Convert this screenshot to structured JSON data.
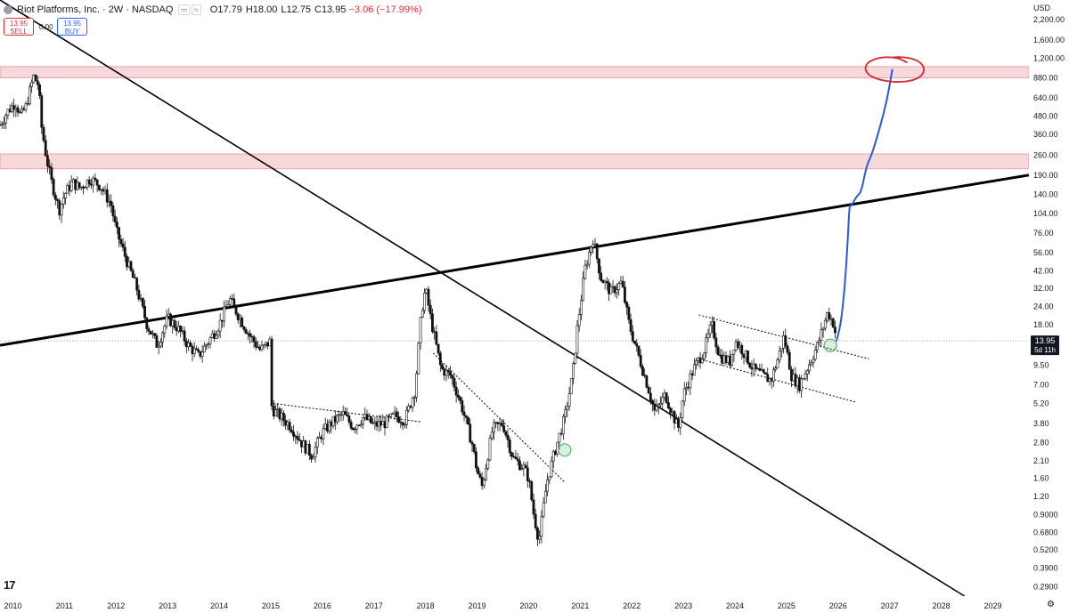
{
  "header": {
    "title": "Riot Platforms, Inc. · 2W · NASDAQ",
    "ind_a": "═",
    "ind_b": "≈",
    "open": "O17.79",
    "high": "H18.00",
    "low": "L12.75",
    "close": "C13.95",
    "change": "−3.06 (−17.99%)",
    "sell_price": "13.95",
    "sell_label": "SELL",
    "spread": "0.00",
    "buy_price": "13.95",
    "buy_label": "BUY"
  },
  "axis": {
    "currency": "USD",
    "countdown": "5d 11h",
    "settings_icon": "gear-icon",
    "logo_text": "17"
  },
  "colors": {
    "candle": "#111111",
    "zone_fill": "#f7d9db",
    "zone_line": "#e9a3a8",
    "projection": "#2b59d9",
    "target_circle": "#d9282f",
    "reversal_marker": "#3aa55a",
    "price_label_bg": "#131722"
  },
  "chart_data": {
    "type": "candlestick",
    "title": "Riot Platforms, Inc. · 2W · NASDAQ",
    "y_scale": "log",
    "ylim": [
      0.25,
      3000
    ],
    "xlim": [
      2009.75,
      2029.7
    ],
    "x_ticks": [
      "2010",
      "2011",
      "2012",
      "2013",
      "2014",
      "2015",
      "2016",
      "2017",
      "2018",
      "2019",
      "2020",
      "2021",
      "2022",
      "2023",
      "2024",
      "2025",
      "2026",
      "2027",
      "2028",
      "2029"
    ],
    "y_ticks": [
      "2,200.00",
      "1,600.00",
      "1,200.00",
      "880.00",
      "640.00",
      "480.00",
      "360.00",
      "260.00",
      "190.00",
      "140.00",
      "104.00",
      "76.00",
      "56.00",
      "42.00",
      "32.00",
      "24.00",
      "18.00",
      "13.95",
      "9.50",
      "7.00",
      "5.20",
      "3.80",
      "2.80",
      "2.10",
      "1.60",
      "1.20",
      "0.9000",
      "0.6800",
      "0.5200",
      "0.3900",
      "0.2900"
    ],
    "last_price": "13.95",
    "price_path": [
      [
        2009.75,
        420
      ],
      [
        2009.9,
        520
      ],
      [
        2010.05,
        600
      ],
      [
        2010.15,
        480
      ],
      [
        2010.25,
        560
      ],
      [
        2010.4,
        900
      ],
      [
        2010.5,
        780
      ],
      [
        2010.55,
        420
      ],
      [
        2010.65,
        250
      ],
      [
        2010.75,
        170
      ],
      [
        2010.9,
        110
      ],
      [
        2011.0,
        140
      ],
      [
        2011.15,
        170
      ],
      [
        2011.3,
        155
      ],
      [
        2011.5,
        180
      ],
      [
        2011.7,
        160
      ],
      [
        2011.9,
        120
      ],
      [
        2012.0,
        80
      ],
      [
        2012.2,
        50
      ],
      [
        2012.4,
        32
      ],
      [
        2012.6,
        18
      ],
      [
        2012.8,
        13
      ],
      [
        2013.0,
        20
      ],
      [
        2013.2,
        17
      ],
      [
        2013.4,
        13
      ],
      [
        2013.6,
        11
      ],
      [
        2013.8,
        14
      ],
      [
        2014.0,
        18
      ],
      [
        2014.2,
        27
      ],
      [
        2014.4,
        20
      ],
      [
        2014.6,
        15
      ],
      [
        2014.8,
        12
      ],
      [
        2015.0,
        14
      ],
      [
        2015.02,
        4.8
      ],
      [
        2015.2,
        4.2
      ],
      [
        2015.4,
        3.6
      ],
      [
        2015.6,
        2.8
      ],
      [
        2015.8,
        2.3
      ],
      [
        2016.0,
        3.3
      ],
      [
        2016.2,
        3.9
      ],
      [
        2016.4,
        4.4
      ],
      [
        2016.6,
        3.6
      ],
      [
        2016.8,
        4.2
      ],
      [
        2017.0,
        3.7
      ],
      [
        2017.2,
        3.8
      ],
      [
        2017.4,
        4.3
      ],
      [
        2017.6,
        4.0
      ],
      [
        2017.8,
        6.5
      ],
      [
        2017.92,
        22
      ],
      [
        2018.0,
        32
      ],
      [
        2018.1,
        20
      ],
      [
        2018.3,
        9
      ],
      [
        2018.5,
        8
      ],
      [
        2018.7,
        5
      ],
      [
        2018.9,
        2.8
      ],
      [
        2019.0,
        1.8
      ],
      [
        2019.1,
        1.4
      ],
      [
        2019.3,
        3.5
      ],
      [
        2019.5,
        3.8
      ],
      [
        2019.7,
        2.2
      ],
      [
        2019.9,
        1.9
      ],
      [
        2020.0,
        1.6
      ],
      [
        2020.1,
        0.9
      ],
      [
        2020.2,
        0.6
      ],
      [
        2020.35,
        1.5
      ],
      [
        2020.5,
        2.4
      ],
      [
        2020.7,
        4.2
      ],
      [
        2020.85,
        8
      ],
      [
        2020.95,
        18
      ],
      [
        2021.1,
        45
      ],
      [
        2021.25,
        70
      ],
      [
        2021.4,
        38
      ],
      [
        2021.6,
        30
      ],
      [
        2021.8,
        35
      ],
      [
        2021.95,
        18
      ],
      [
        2022.1,
        12
      ],
      [
        2022.3,
        7
      ],
      [
        2022.45,
        4.5
      ],
      [
        2022.65,
        6
      ],
      [
        2022.9,
        3.5
      ],
      [
        2023.0,
        6
      ],
      [
        2023.2,
        9
      ],
      [
        2023.4,
        12
      ],
      [
        2023.55,
        18
      ],
      [
        2023.7,
        11
      ],
      [
        2023.9,
        10
      ],
      [
        2024.0,
        14
      ],
      [
        2024.15,
        12
      ],
      [
        2024.35,
        9
      ],
      [
        2024.55,
        8
      ],
      [
        2024.7,
        7.5
      ],
      [
        2024.85,
        11
      ],
      [
        2024.95,
        15
      ],
      [
        2025.1,
        8
      ],
      [
        2025.25,
        7
      ],
      [
        2025.4,
        9
      ],
      [
        2025.6,
        13
      ],
      [
        2025.8,
        22
      ],
      [
        2025.92,
        18
      ],
      [
        2025.97,
        13.95
      ]
    ],
    "trendlines": [
      {
        "from": [
          2009.75,
          3000
        ],
        "to": [
          2028.45,
          0.25
        ]
      },
      {
        "from": [
          2009.75,
          13
        ],
        "to": [
          2029.7,
          190
        ]
      }
    ],
    "dotted_lines": [
      {
        "from": [
          2015.05,
          5.2
        ],
        "to": [
          2017.9,
          3.9
        ]
      },
      {
        "from": [
          2018.15,
          11.5
        ],
        "to": [
          2020.7,
          1.5
        ]
      },
      {
        "from": [
          2023.3,
          21
        ],
        "to": [
          2026.6,
          10.5
        ]
      },
      {
        "from": [
          2023.3,
          10.5
        ],
        "to": [
          2026.35,
          5.3
        ]
      }
    ],
    "zones": [
      {
        "low": 880,
        "high": 1050
      },
      {
        "low": 210,
        "high": 265
      }
    ],
    "projection": [
      [
        2025.97,
        14
      ],
      [
        2026.05,
        18
      ],
      [
        2026.12,
        30
      ],
      [
        2026.18,
        60
      ],
      [
        2026.22,
        120
      ],
      [
        2026.25,
        115
      ],
      [
        2026.35,
        135
      ],
      [
        2026.45,
        145
      ],
      [
        2026.55,
        220
      ],
      [
        2026.65,
        260
      ],
      [
        2026.8,
        390
      ],
      [
        2026.95,
        620
      ],
      [
        2027.05,
        1000
      ]
    ],
    "target_circle": {
      "x": 2027.1,
      "y": 1000
    },
    "reversal_markers": [
      [
        2020.7,
        2.5
      ],
      [
        2025.85,
        13
      ]
    ]
  }
}
